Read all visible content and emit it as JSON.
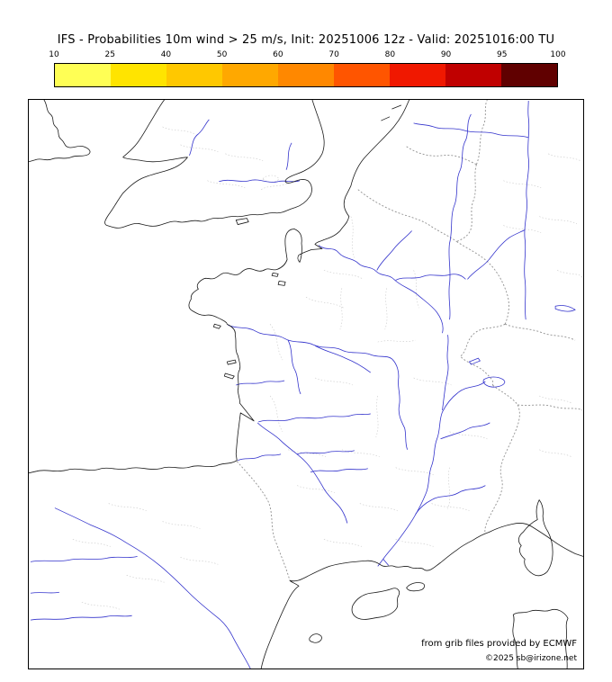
{
  "title": "IFS - Probabilities 10m wind > 25 m/s, Init: 20251006 12z - Valid: 20251016:00 TU",
  "legend": {
    "tick_labels": [
      "10",
      "25",
      "40",
      "50",
      "60",
      "70",
      "80",
      "90",
      "95",
      "100"
    ],
    "colors": [
      "#ffff55",
      "#ffe400",
      "#ffc800",
      "#ffa800",
      "#ff8800",
      "#ff5500",
      "#f01800",
      "#c00000",
      "#600000"
    ]
  },
  "attribution": {
    "line1": "from grib files provided by ECMWF",
    "line2": "©2025 sb@irizone.net"
  },
  "map": {
    "colors": {
      "coastline": "#1a1a1a",
      "river": "#3333cc",
      "country_border": "#909090",
      "admin_boundary": "#c8c8c8"
    }
  }
}
